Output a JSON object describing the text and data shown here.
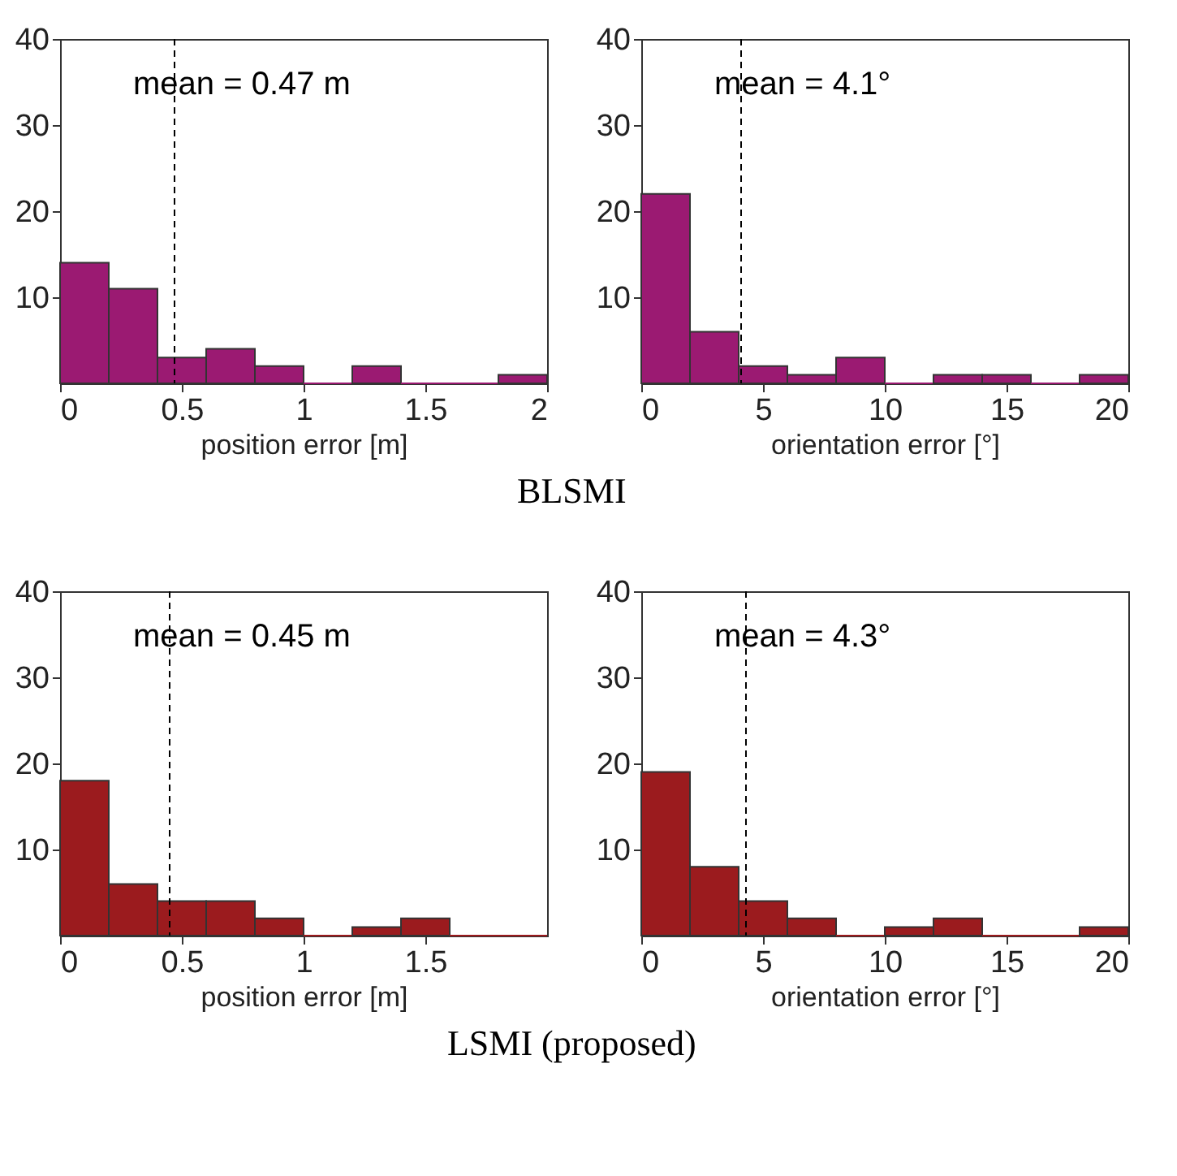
{
  "chart_data": [
    {
      "type": "histogram",
      "xlabel": "position error [m]",
      "bins": [
        0,
        0.2,
        0.4,
        0.6,
        0.8,
        1,
        1.2,
        1.4,
        1.6,
        1.8,
        2
      ],
      "values": [
        14,
        11,
        3,
        4,
        2,
        0,
        2,
        0,
        0,
        1
      ],
      "color": "#9b1a72",
      "xlim": [
        0,
        2
      ],
      "xticks": [
        0,
        0.5,
        1,
        1.5,
        2
      ],
      "ylim": [
        0,
        40
      ],
      "yticks": [
        10,
        20,
        30,
        40
      ],
      "grid": false,
      "ref_lines": [
        {
          "axis": "x",
          "value": 0.47,
          "label": "mean = 0.47 m",
          "line_style": "dashed"
        }
      ],
      "annotations": [
        "BLSMI"
      ]
    },
    {
      "type": "histogram",
      "xlabel": "orientation error [°]",
      "bins": [
        0,
        2,
        4,
        6,
        8,
        10,
        12,
        14,
        16,
        18,
        20
      ],
      "values": [
        22,
        6,
        2,
        1,
        3,
        0,
        1,
        1,
        0,
        1
      ],
      "color": "#9b1a72",
      "xlim": [
        0,
        20
      ],
      "xticks": [
        0,
        5,
        10,
        15,
        20
      ],
      "ylim": [
        0,
        40
      ],
      "yticks": [
        10,
        20,
        30,
        40
      ],
      "grid": false,
      "ref_lines": [
        {
          "axis": "x",
          "value": 4.1,
          "label": "mean = 4.1°",
          "line_style": "dashed"
        }
      ]
    },
    {
      "type": "histogram",
      "xlabel": "position error [m]",
      "bins": [
        0,
        0.2,
        0.4,
        0.6,
        0.8,
        1,
        1.2,
        1.4,
        1.6,
        1.8,
        2
      ],
      "values": [
        18,
        6,
        4,
        4,
        2,
        0,
        1,
        2,
        0,
        0
      ],
      "color": "#9b1b1e",
      "xlim": [
        0,
        2
      ],
      "xticks": [
        0,
        0.5,
        1,
        1.5
      ],
      "ylim": [
        0,
        40
      ],
      "yticks": [
        10,
        20,
        30,
        40
      ],
      "grid": false,
      "ref_lines": [
        {
          "axis": "x",
          "value": 0.45,
          "label": "mean = 0.45 m",
          "line_style": "dashed"
        }
      ],
      "annotations": [
        "LSMI (proposed)"
      ]
    },
    {
      "type": "histogram",
      "xlabel": "orientation error [°]",
      "bins": [
        0,
        2,
        4,
        6,
        8,
        10,
        12,
        14,
        16,
        18,
        20
      ],
      "values": [
        19,
        8,
        4,
        2,
        0,
        1,
        2,
        0,
        0,
        1
      ],
      "color": "#9b1b1e",
      "xlim": [
        0,
        20
      ],
      "xticks": [
        0,
        5,
        10,
        15,
        20
      ],
      "ylim": [
        0,
        40
      ],
      "yticks": [
        10,
        20,
        30,
        40
      ],
      "grid": false,
      "ref_lines": [
        {
          "axis": "x",
          "value": 4.3,
          "label": "mean = 4.3°",
          "line_style": "dashed"
        }
      ]
    }
  ]
}
